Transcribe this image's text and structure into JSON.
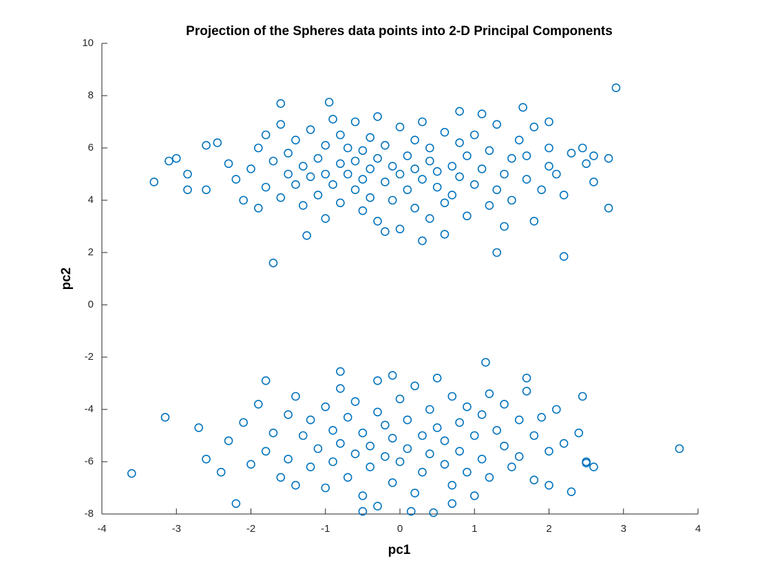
{
  "chart_data": {
    "type": "scatter",
    "title": "Projection of the Spheres data points into 2-D Principal Components",
    "xlabel": "pc1",
    "ylabel": "pc2",
    "xlim": [
      -4,
      4
    ],
    "ylim": [
      -8,
      10
    ],
    "xticks": [
      -4,
      -3,
      -2,
      -1,
      0,
      1,
      2,
      3,
      4
    ],
    "yticks": [
      -8,
      -6,
      -4,
      -2,
      0,
      2,
      4,
      6,
      8,
      10
    ],
    "x": [
      -3.3,
      -3.1,
      -3.0,
      -2.85,
      -2.85,
      -2.6,
      -2.6,
      -2.45,
      -1.7,
      -1.6,
      -1.25,
      -0.95,
      1.3,
      2.2,
      2.9,
      2.8,
      2.8,
      2.6,
      2.6,
      2.45,
      2.5,
      2.0,
      1.65,
      0.3,
      -3.6,
      -3.15,
      -2.2,
      1.15,
      3.75,
      2.3,
      2.45,
      2.5,
      -0.5,
      0.15,
      0.45,
      -0.8,
      -0.1,
      1.7,
      -2.2,
      -2.0,
      -1.9,
      -1.8,
      -1.8,
      -1.7,
      -1.6,
      -1.6,
      -1.5,
      -1.5,
      -1.4,
      -1.4,
      -1.3,
      -1.3,
      -1.2,
      -1.2,
      -1.1,
      -1.1,
      -1.0,
      -1.0,
      -1.0,
      -0.9,
      -0.9,
      -0.8,
      -0.8,
      -0.8,
      -0.7,
      -0.7,
      -0.6,
      -0.6,
      -0.6,
      -0.5,
      -0.5,
      -0.5,
      -0.4,
      -0.4,
      -0.4,
      -0.3,
      -0.3,
      -0.3,
      -0.2,
      -0.2,
      -0.1,
      -0.1,
      0.0,
      0.0,
      0.0,
      0.1,
      0.1,
      0.2,
      0.2,
      0.2,
      0.3,
      0.3,
      0.4,
      0.4,
      0.4,
      0.5,
      0.5,
      0.6,
      0.6,
      0.7,
      0.7,
      0.8,
      0.8,
      0.8,
      0.9,
      0.9,
      1.0,
      1.0,
      1.1,
      1.1,
      1.2,
      1.2,
      1.3,
      1.3,
      1.4,
      1.4,
      1.5,
      1.5,
      1.6,
      1.7,
      1.7,
      1.8,
      1.8,
      1.9,
      2.0,
      2.0,
      2.2,
      2.3,
      -2.3,
      -2.1,
      2.1,
      -0.2,
      0.6,
      -1.9,
      -2.3,
      -2.1,
      -2.0,
      -1.9,
      -1.8,
      -1.8,
      -1.7,
      -1.6,
      -1.5,
      -1.5,
      -1.4,
      -1.4,
      -1.3,
      -1.2,
      -1.2,
      -1.1,
      -1.0,
      -1.0,
      -0.9,
      -0.9,
      -0.8,
      -0.8,
      -0.7,
      -0.7,
      -0.6,
      -0.6,
      -0.5,
      -0.5,
      -0.4,
      -0.4,
      -0.3,
      -0.3,
      -0.2,
      -0.2,
      -0.1,
      -0.1,
      0.0,
      0.0,
      0.1,
      0.1,
      0.2,
      0.2,
      0.3,
      0.3,
      0.4,
      0.4,
      0.5,
      0.5,
      0.6,
      0.6,
      0.7,
      0.7,
      0.8,
      0.8,
      0.9,
      0.9,
      1.0,
      1.0,
      1.1,
      1.1,
      1.2,
      1.2,
      1.3,
      1.4,
      1.4,
      1.5,
      1.6,
      1.6,
      1.7,
      1.8,
      1.8,
      1.9,
      2.0,
      2.0,
      2.1,
      2.2,
      2.4,
      2.5,
      -2.4,
      -2.7,
      -2.6,
      2.6,
      -0.3,
      0.7
    ],
    "series": [
      {
        "color": "#0072bd",
        "values": [
          4.7,
          5.5,
          5.6,
          5.0,
          4.4,
          6.1,
          4.4,
          6.2,
          1.6,
          7.7,
          2.65,
          7.75,
          2.0,
          1.85,
          8.3,
          3.7,
          5.6,
          5.7,
          4.7,
          6.0,
          5.4,
          7.0,
          7.55,
          2.45,
          -6.45,
          -4.3,
          -7.6,
          -2.2,
          -5.5,
          -7.15,
          -3.5,
          -6.05,
          -7.9,
          -7.9,
          -7.95,
          -2.55,
          -2.7,
          -2.8,
          4.8,
          5.2,
          6.0,
          4.5,
          6.5,
          5.5,
          4.1,
          6.9,
          5.0,
          5.8,
          4.6,
          6.3,
          5.3,
          3.8,
          6.7,
          4.9,
          5.6,
          4.2,
          6.1,
          5.0,
          3.3,
          7.1,
          4.6,
          5.4,
          6.5,
          3.9,
          5.0,
          6.0,
          4.4,
          7.0,
          5.5,
          3.6,
          5.9,
          4.8,
          6.4,
          5.2,
          4.1,
          7.2,
          5.6,
          3.2,
          4.7,
          6.1,
          5.3,
          4.0,
          6.8,
          5.0,
          2.9,
          5.7,
          4.4,
          6.3,
          3.7,
          5.2,
          4.8,
          7.0,
          5.5,
          3.3,
          6.0,
          4.5,
          5.1,
          6.6,
          3.9,
          5.3,
          4.2,
          6.2,
          7.4,
          4.9,
          5.7,
          3.4,
          4.6,
          6.5,
          5.2,
          7.3,
          3.8,
          5.9,
          4.4,
          6.9,
          5.0,
          3.0,
          5.6,
          4.0,
          6.3,
          4.8,
          5.7,
          3.2,
          6.8,
          4.4,
          5.3,
          6.0,
          4.2,
          5.8,
          5.4,
          4.0,
          5.0,
          2.8,
          2.7,
          3.7,
          -5.2,
          -4.5,
          -6.1,
          -3.8,
          -5.6,
          -2.9,
          -4.9,
          -6.6,
          -4.2,
          -5.9,
          -3.5,
          -6.9,
          -5.0,
          -4.4,
          -6.2,
          -5.5,
          -3.9,
          -7.0,
          -4.8,
          -6.0,
          -5.3,
          -3.2,
          -4.3,
          -6.6,
          -5.7,
          -3.7,
          -4.9,
          -7.3,
          -5.4,
          -6.2,
          -4.1,
          -2.9,
          -5.8,
          -4.6,
          -6.8,
          -5.1,
          -3.6,
          -6.0,
          -4.4,
          -5.5,
          -7.2,
          -3.1,
          -5.0,
          -6.4,
          -4.0,
          -5.7,
          -2.8,
          -4.7,
          -6.1,
          -5.2,
          -3.5,
          -6.9,
          -4.5,
          -5.6,
          -3.9,
          -6.4,
          -5.0,
          -7.3,
          -4.2,
          -5.9,
          -3.4,
          -6.6,
          -4.8,
          -5.4,
          -3.8,
          -6.2,
          -4.4,
          -5.8,
          -3.3,
          -5.0,
          -6.7,
          -4.3,
          -5.6,
          -6.9,
          -4.0,
          -5.3,
          -4.9,
          -6.0,
          -6.4,
          -4.7,
          -5.9,
          -6.2,
          -7.7,
          -7.6
        ]
      }
    ]
  }
}
